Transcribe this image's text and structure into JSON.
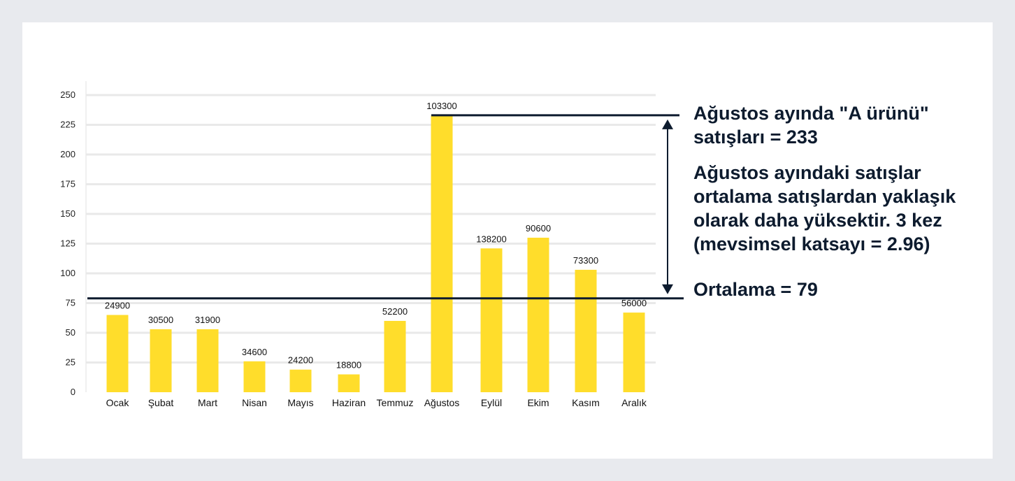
{
  "chart_data": {
    "type": "bar",
    "categories": [
      "Ocak",
      "Şubat",
      "Mart",
      "Nisan",
      "Mayıs",
      "Haziran",
      "Temmuz",
      "Ağustos",
      "Eylül",
      "Ekim",
      "Kasım",
      "Aralık"
    ],
    "values": [
      65,
      53,
      53,
      26,
      19,
      15,
      60,
      233,
      121,
      130,
      103,
      67
    ],
    "data_labels": [
      "24900",
      "30500",
      "31900",
      "34600",
      "24200",
      "18800",
      "52200",
      "103300",
      "138200",
      "90600",
      "73300",
      "56000"
    ],
    "yticks": [
      0,
      25,
      50,
      75,
      100,
      125,
      150,
      175,
      200,
      225,
      250
    ],
    "ylim": [
      0,
      250
    ],
    "grid": true,
    "title": "",
    "xlabel": "",
    "ylabel": "",
    "bar_color": "#ffdd2b",
    "line_color": "#0d1b2e",
    "grid_color": "#e9e9e9",
    "reference_lines": [
      {
        "value": 233,
        "label": "Ağustos ayında \"A ürünü\" satışları = 233"
      },
      {
        "value": 79,
        "label": "Ortalama = 79"
      }
    ]
  },
  "annotations": {
    "peak": "Ağustos ayında \"A ürünü\" satışları = 233",
    "seasonal": "Ağustos ayındaki satışlar ortalama satışlardan yaklaşık olarak daha yüksektir. 3 kez (mevsimsel katsayı = 2.96)",
    "average": "Ortalama = 79"
  }
}
